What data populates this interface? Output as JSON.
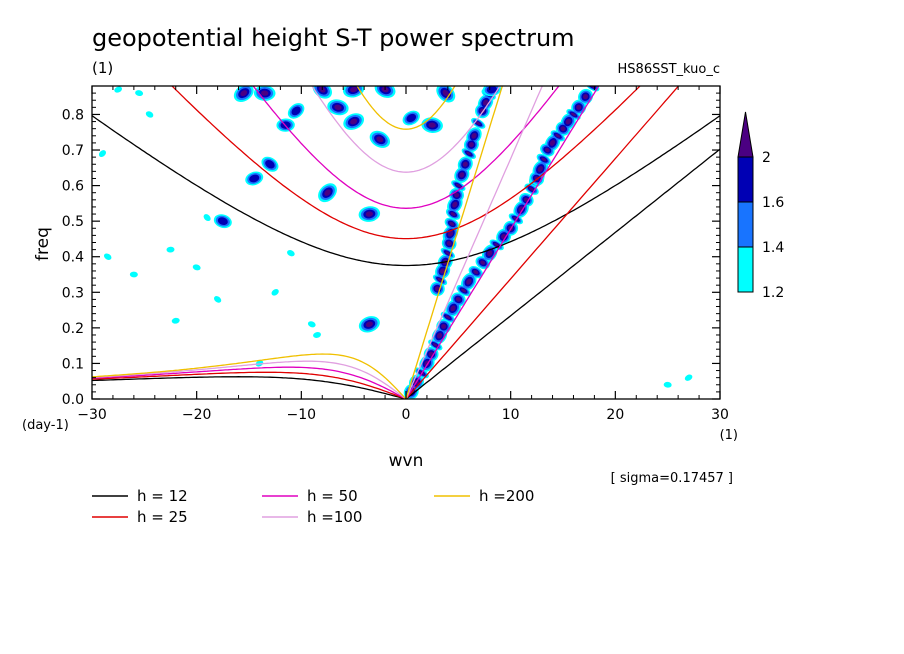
{
  "chart_data": {
    "type": "heatmap",
    "title": "geopotential height S-T power spectrum",
    "subtitle_left": "(1)",
    "subtitle_right": "HS86SST_kuo_c",
    "xlabel": "wvn",
    "ylabel": "freq",
    "x_unit": "(1)",
    "y_unit": "(day-1)",
    "xlim": [
      -30,
      30
    ],
    "ylim": [
      0,
      0.88
    ],
    "x_ticks": [
      -30,
      -20,
      -10,
      0,
      10,
      20,
      30
    ],
    "x_tick_labels": [
      "−30",
      "−20",
      "−10",
      "0",
      "10",
      "20",
      "30"
    ],
    "y_ticks": [
      0.0,
      0.1,
      0.2,
      0.3,
      0.4,
      0.5,
      0.6,
      0.7,
      0.8
    ],
    "y_tick_labels": [
      "0.0",
      "0.1",
      "0.2",
      "0.3",
      "0.4",
      "0.5",
      "0.6",
      "0.7",
      "0.8"
    ],
    "note": "[ sigma=0.17457 ]",
    "colorbar": {
      "levels": [
        "1.2",
        "1.4",
        "1.6",
        "2"
      ],
      "colors": [
        "#00ffff",
        "#1874ff",
        "#0000b4",
        "#4b0082"
      ]
    },
    "shading_ridges": [
      {
        "name": "Kelvin-like ridge",
        "points": [
          [
            0.5,
            0.02
          ],
          [
            2,
            0.1
          ],
          [
            4,
            0.23
          ],
          [
            6,
            0.33
          ],
          [
            8,
            0.41
          ],
          [
            10,
            0.48
          ],
          [
            11.5,
            0.56
          ],
          [
            12.5,
            0.62
          ]
        ]
      },
      {
        "name": "steep ridge",
        "points": [
          [
            3,
            0.31
          ],
          [
            4,
            0.41
          ],
          [
            4.5,
            0.52
          ],
          [
            5,
            0.6
          ],
          [
            6,
            0.69
          ],
          [
            6.5,
            0.74
          ],
          [
            7.3,
            0.81
          ],
          [
            8.2,
            0.88
          ]
        ]
      },
      {
        "name": "upper ridge",
        "points": [
          [
            12.5,
            0.62
          ],
          [
            13.5,
            0.7
          ],
          [
            15,
            0.76
          ],
          [
            16.5,
            0.82
          ],
          [
            17.8,
            0.88
          ]
        ]
      }
    ],
    "dispersion_curves": [
      {
        "label": "h = 12",
        "color": "#000000"
      },
      {
        "label": "h = 25",
        "color": "#e00000"
      },
      {
        "label": "h = 50",
        "color": "#e000c0"
      },
      {
        "label": "h =100",
        "color": "#e0a0e0"
      },
      {
        "label": "h =200",
        "color": "#f0c000"
      }
    ]
  }
}
